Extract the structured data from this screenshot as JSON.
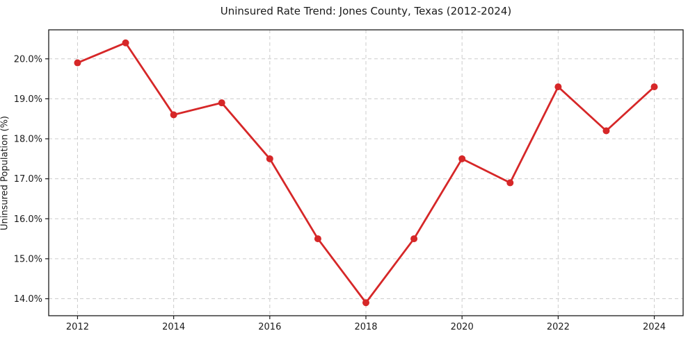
{
  "chart_data": {
    "type": "line",
    "title": "Uninsured Rate Trend: Jones County, Texas (2012-2024)",
    "xlabel": "",
    "ylabel": "Uninsured Population (%)",
    "x": [
      2012,
      2013,
      2014,
      2015,
      2016,
      2017,
      2018,
      2019,
      2020,
      2021,
      2022,
      2023,
      2024
    ],
    "values": [
      19.9,
      20.4,
      18.6,
      18.9,
      17.5,
      15.5,
      13.9,
      15.5,
      17.5,
      16.9,
      19.3,
      18.2,
      19.3
    ],
    "xticks": [
      2012,
      2014,
      2016,
      2018,
      2020,
      2022,
      2024
    ],
    "yticks": [
      14.0,
      15.0,
      16.0,
      17.0,
      18.0,
      19.0,
      20.0
    ],
    "ytick_suffix": "%",
    "xlim": [
      2011.4,
      2024.6
    ],
    "ylim": [
      13.575,
      20.725
    ],
    "grid": true,
    "grid_style": "dashed",
    "legend": false,
    "colors": {
      "line": "#d62728",
      "marker": "#d62728",
      "grid": "#cccccc",
      "spine": "#1a1a1a",
      "text": "#1a1a1a",
      "background": "#ffffff"
    }
  }
}
